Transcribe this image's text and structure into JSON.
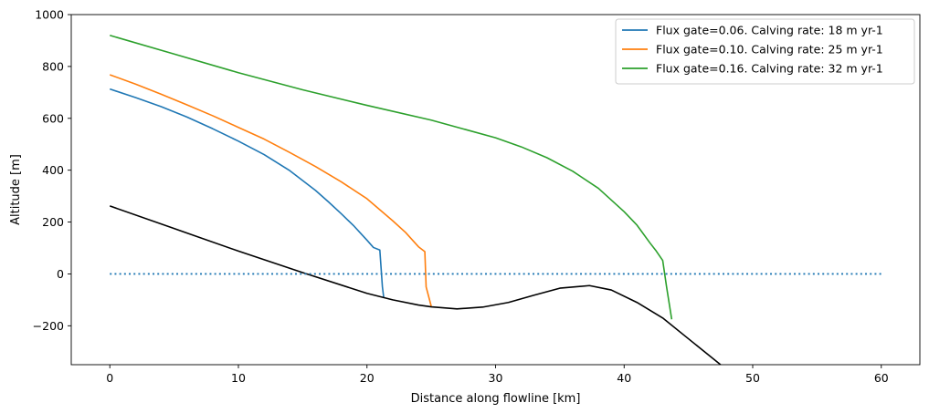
{
  "chart_data": {
    "type": "line",
    "title": "",
    "xlabel": "Distance along flowline [km]",
    "ylabel": "Altitude [m]",
    "xlim": [
      -3,
      63
    ],
    "ylim": [
      -350,
      1000
    ],
    "xticks": [
      0,
      10,
      20,
      30,
      40,
      50,
      60
    ],
    "yticks": [
      -200,
      0,
      200,
      400,
      600,
      800,
      1000
    ],
    "ytick_labels": [
      "−200",
      "0",
      "200",
      "400",
      "600",
      "800",
      "1000"
    ],
    "grid": false,
    "legend_position": "top-right",
    "series": [
      {
        "name": "Flux gate=0.06. Calving rate: 18 m yr-1",
        "color": "#1f77b4",
        "x": [
          0,
          2,
          4,
          6,
          8,
          10,
          12,
          14,
          16,
          17,
          18,
          19,
          20,
          20.5,
          21,
          21.2,
          21.3
        ],
        "y": [
          713,
          680,
          645,
          605,
          560,
          512,
          460,
          398,
          322,
          278,
          232,
          184,
          130,
          102,
          92,
          -50,
          -90
        ]
      },
      {
        "name": "Flux gate=0.10. Calving rate: 25 m yr-1",
        "color": "#ff7f0e",
        "x": [
          0,
          2,
          4,
          6,
          8,
          10,
          12,
          14,
          16,
          18,
          20,
          22,
          23,
          24,
          24.5,
          24.6,
          25.0
        ],
        "y": [
          768,
          732,
          693,
          652,
          610,
          565,
          520,
          468,
          414,
          355,
          290,
          205,
          160,
          105,
          86,
          -50,
          -125
        ]
      },
      {
        "name": "Flux gate=0.16. Calving rate: 32 m yr-1",
        "color": "#2ca02c",
        "x": [
          0,
          5,
          10,
          15,
          20,
          25,
          30,
          32,
          34,
          36,
          38,
          40,
          41,
          42,
          42.5,
          43,
          43.3,
          43.7
        ],
        "y": [
          920,
          848,
          776,
          710,
          650,
          593,
          525,
          490,
          448,
          396,
          330,
          240,
          188,
          120,
          88,
          52,
          -50,
          -175
        ]
      },
      {
        "name": "",
        "color": "#000000",
        "x": [
          0,
          5,
          10,
          15,
          20,
          22,
          24,
          25,
          27,
          29,
          31,
          33,
          35,
          37.3,
          39,
          41,
          43,
          45,
          47.5
        ],
        "y": [
          262,
          175,
          88,
          5,
          -75,
          -100,
          -120,
          -127,
          -135,
          -128,
          -110,
          -82,
          -55,
          -45,
          -62,
          -110,
          -170,
          -250,
          -350
        ]
      },
      {
        "name": "",
        "color": "#1f77b4",
        "dotted": true,
        "x": [
          0,
          60
        ],
        "y": [
          0,
          0
        ]
      }
    ]
  }
}
